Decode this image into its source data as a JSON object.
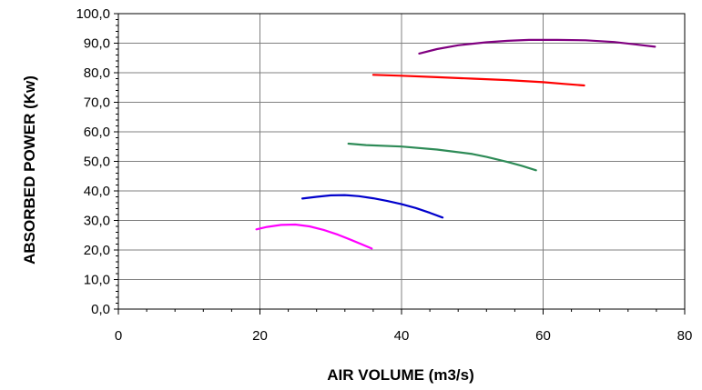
{
  "chart_data": {
    "type": "line",
    "title": "",
    "xlabel": "AIR VOLUME (m3/s)",
    "ylabel": "ABSORBED POWER (Kw)",
    "xlim": [
      0,
      80
    ],
    "ylim": [
      0,
      100
    ],
    "x_ticks": [
      0,
      20,
      40,
      60,
      80
    ],
    "x_tick_labels": [
      "0",
      "20",
      "40",
      "60",
      "80"
    ],
    "y_ticks": [
      0,
      10,
      20,
      30,
      40,
      50,
      60,
      70,
      80,
      90,
      100
    ],
    "y_tick_labels": [
      "0,0",
      "10,0",
      "20,0",
      "30,0",
      "40,0",
      "50,0",
      "60,0",
      "70,0",
      "80,0",
      "90,0",
      "100,0"
    ],
    "grid": true,
    "legend": "none",
    "series": [
      {
        "color": "#ff00ff",
        "x": [
          19.5,
          21,
          23,
          25,
          27,
          29,
          31,
          33,
          34.5,
          35.8
        ],
        "y": [
          27.0,
          27.8,
          28.5,
          28.6,
          28.0,
          26.8,
          25.2,
          23.3,
          21.8,
          20.5
        ]
      },
      {
        "color": "#0000cc",
        "x": [
          26,
          28,
          30,
          32,
          34,
          36,
          38,
          40,
          42,
          44,
          45.8
        ],
        "y": [
          37.4,
          38.0,
          38.5,
          38.6,
          38.2,
          37.5,
          36.6,
          35.5,
          34.2,
          32.6,
          31.0
        ]
      },
      {
        "color": "#2e8b57",
        "x": [
          32.5,
          35,
          40,
          45,
          50,
          52,
          55,
          57,
          59
        ],
        "y": [
          56.0,
          55.5,
          55.0,
          54.0,
          52.5,
          51.5,
          49.8,
          48.5,
          47.0
        ]
      },
      {
        "color": "#ff0000",
        "x": [
          36,
          40,
          45,
          50,
          55,
          60,
          63,
          65.8
        ],
        "y": [
          79.3,
          79.0,
          78.5,
          78.0,
          77.5,
          76.8,
          76.2,
          75.7
        ]
      },
      {
        "color": "#800080",
        "x": [
          42.5,
          45,
          48,
          52,
          55,
          58,
          62,
          66,
          70,
          73,
          75.8
        ],
        "y": [
          86.5,
          88.0,
          89.3,
          90.3,
          90.8,
          91.1,
          91.1,
          91.0,
          90.4,
          89.6,
          88.8
        ]
      }
    ]
  }
}
